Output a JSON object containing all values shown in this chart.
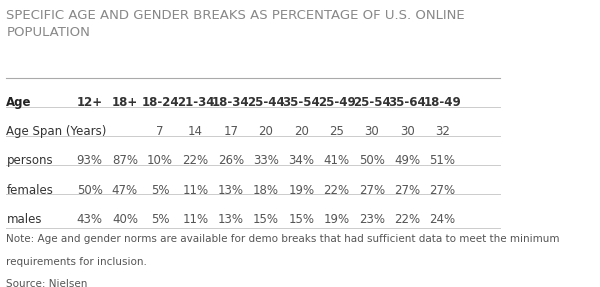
{
  "title": "SPECIFIC AGE AND GENDER BREAKS AS PERCENTAGE OF U.S. ONLINE\nPOPULATION",
  "title_fontsize": 9.5,
  "title_color": "#888888",
  "background_color": "#ffffff",
  "header_row": [
    "Age",
    "12+",
    "18+",
    "18-24",
    "21-34",
    "18-34",
    "25-44",
    "35-54",
    "25-49",
    "25-54",
    "35-64",
    "18-49"
  ],
  "rows": [
    [
      "Age Span (Years)",
      "",
      "",
      "7",
      "14",
      "17",
      "20",
      "20",
      "25",
      "30",
      "30",
      "32"
    ],
    [
      "persons",
      "93%",
      "87%",
      "10%",
      "22%",
      "26%",
      "33%",
      "34%",
      "41%",
      "50%",
      "49%",
      "51%"
    ],
    [
      "females",
      "50%",
      "47%",
      "5%",
      "11%",
      "13%",
      "18%",
      "19%",
      "22%",
      "27%",
      "27%",
      "27%"
    ],
    [
      "males",
      "43%",
      "40%",
      "5%",
      "11%",
      "13%",
      "15%",
      "15%",
      "19%",
      "23%",
      "22%",
      "24%"
    ]
  ],
  "note_line1": "Note: Age and gender norms are available for demo breaks that had sufficient data to meet the minimum",
  "note_line2": "requirements for inclusion.",
  "source": "Source: Nielsen",
  "note_fontsize": 7.5,
  "header_fontsize": 8.5,
  "cell_fontsize": 8.5,
  "row_label_fontsize": 8.5,
  "divider_color": "#cccccc",
  "header_text_color": "#333333",
  "cell_text_color": "#555555",
  "bold_col_color": "#222222"
}
